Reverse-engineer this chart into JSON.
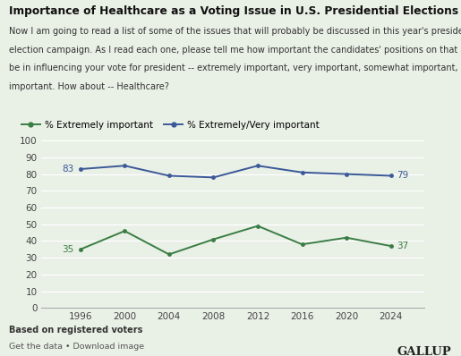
{
  "title": "Importance of Healthcare as a Voting Issue in U.S. Presidential Elections",
  "subtitle_lines": [
    "Now I am going to read a list of some of the issues that will probably be discussed in this year's presidential",
    "election campaign. As I read each one, please tell me how important the candidates' positions on that issue will",
    "be in influencing your vote for president -- extremely important, very important, somewhat important, or not",
    "important. How about -- Healthcare?"
  ],
  "years": [
    1996,
    2000,
    2004,
    2008,
    2012,
    2016,
    2020,
    2024
  ],
  "extremely_important": [
    35,
    46,
    32,
    41,
    49,
    38,
    42,
    37
  ],
  "extremely_very_important": [
    83,
    85,
    79,
    78,
    85,
    81,
    80,
    79
  ],
  "line1_color": "#3a7d44",
  "line2_color": "#3b5998",
  "bg_color": "#e9f0e6",
  "label1": "% Extremely important",
  "label2": "% Extremely/Very important",
  "footnote": "Based on registered voters",
  "footer_left": "Get the data • Download image",
  "footer_right": "GALLUP",
  "ylim": [
    0,
    100
  ],
  "yticks": [
    0,
    10,
    20,
    30,
    40,
    50,
    60,
    70,
    80,
    90,
    100
  ],
  "end_label_1": "37",
  "end_label_2": "79",
  "start_label_1": "35",
  "start_label_2": "83"
}
